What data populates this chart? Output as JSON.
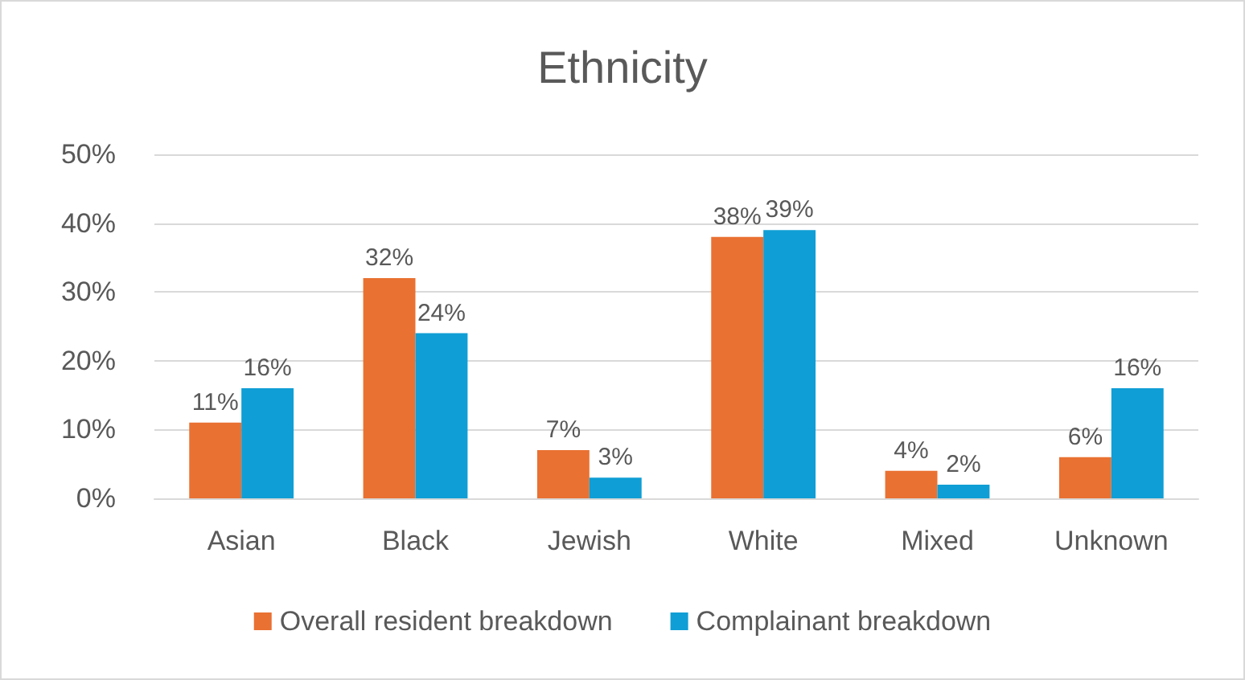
{
  "chart_data": {
    "type": "bar",
    "title": "Ethnicity",
    "categories": [
      "Asian",
      "Black",
      "Jewish",
      "White",
      "Mixed",
      "Unknown"
    ],
    "series": [
      {
        "name": "Overall resident breakdown",
        "color": "#e97132",
        "values": [
          11,
          32,
          7,
          38,
          4,
          6
        ],
        "value_labels": [
          "11%",
          "32%",
          "7%",
          "38%",
          "4%",
          "6%"
        ]
      },
      {
        "name": "Complainant breakdown",
        "color": "#0f9ed5",
        "values": [
          16,
          24,
          3,
          39,
          2,
          16
        ],
        "value_labels": [
          "16%",
          "24%",
          "3%",
          "39%",
          "2%",
          "16%"
        ]
      }
    ],
    "ylim": [
      0,
      50
    ],
    "yticks": [
      {
        "value": 0,
        "label": "0%"
      },
      {
        "value": 10,
        "label": "10%"
      },
      {
        "value": 20,
        "label": "20%"
      },
      {
        "value": 30,
        "label": "30%"
      },
      {
        "value": 40,
        "label": "40%"
      },
      {
        "value": 50,
        "label": "50%"
      }
    ],
    "grid": "y",
    "legend": "bottom"
  }
}
